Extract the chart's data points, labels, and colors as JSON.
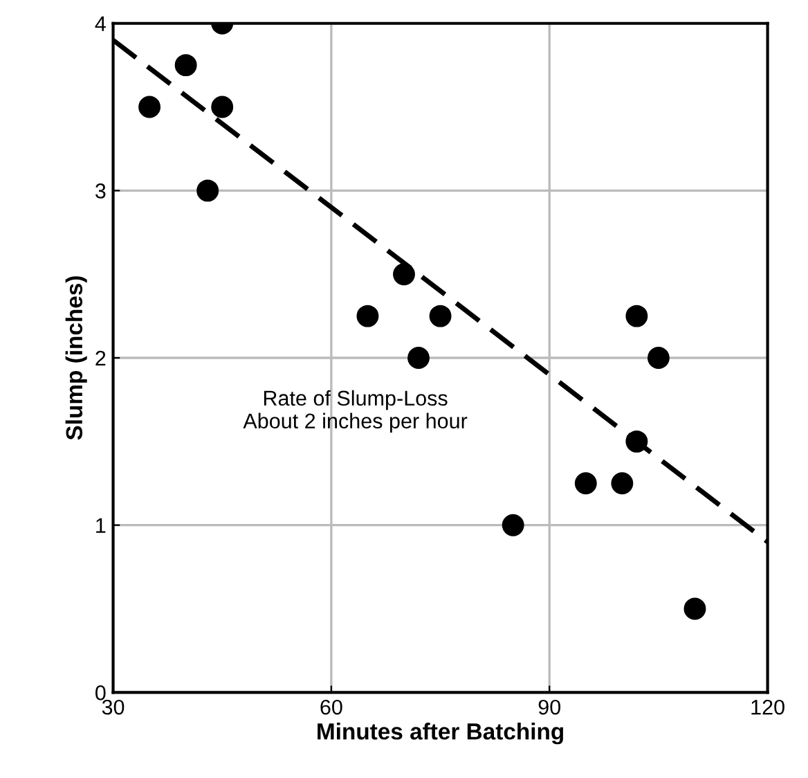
{
  "chart_data": {
    "type": "scatter",
    "xlabel": "Minutes after Batching",
    "ylabel": "Slump (inches)",
    "annotations": [
      "Rate of Slump-Loss\nAbout 2 inches per hour"
    ],
    "xlim": [
      30,
      120
    ],
    "ylim": [
      0,
      4
    ],
    "xticks": [
      30,
      60,
      90,
      120
    ],
    "yticks": [
      0,
      1,
      2,
      3,
      4
    ],
    "grid": true,
    "legend": false,
    "series": [
      {
        "color": "#000000",
        "marker": "circle",
        "x": [
          35,
          40,
          45,
          45,
          43,
          65,
          70,
          72,
          75,
          85,
          95,
          100,
          102,
          102,
          105,
          110
        ],
        "values": [
          3.5,
          3.75,
          4.0,
          3.5,
          3.0,
          2.25,
          2.5,
          2.0,
          2.25,
          1.0,
          1.25,
          1.25,
          1.5,
          2.25,
          2.0,
          0.5
        ]
      },
      {
        "type": "line",
        "color": "#000000",
        "line_style": "dashed",
        "marker": "none",
        "x": [
          30,
          120
        ],
        "values": [
          3.9,
          0.9
        ]
      }
    ]
  }
}
